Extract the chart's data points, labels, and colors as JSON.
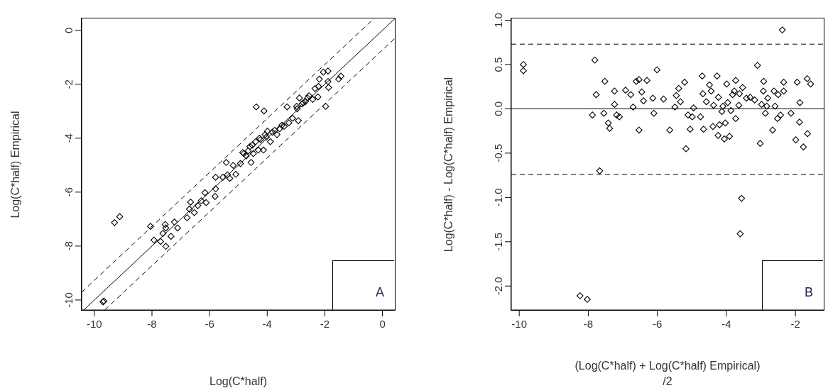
{
  "chart_data": [
    {
      "type": "scatter",
      "xlabel": "Log(C*half)",
      "ylabel": "Log(C*half) Empirical",
      "xlim": [
        -10.44,
        0.43
      ],
      "ylim": [
        -10.37,
        0.44
      ],
      "xticks": [
        -10,
        -8,
        -6,
        -4,
        -2,
        0
      ],
      "yticks": [
        -10,
        -8,
        -6,
        -4,
        -2,
        0
      ],
      "marker": "diamond",
      "annotations": [
        "A"
      ],
      "series": [
        {
          "type": "scatter",
          "color": "#000000",
          "x": [
            -9.67,
            -9.7,
            -9.3,
            -9.12,
            -8.05,
            -7.93,
            -7.7,
            -7.52,
            -7.62,
            -7.52,
            -7.54,
            -7.34,
            -7.22,
            -7.11,
            -6.78,
            -6.7,
            -6.66,
            -6.53,
            -6.41,
            -6.29,
            -6.16,
            -6.12,
            -5.81,
            -5.79,
            -5.79,
            -5.54,
            -5.42,
            -5.38,
            -5.3,
            -5.18,
            -5.09,
            -4.93,
            -4.85,
            -4.73,
            -4.56,
            -4.52,
            -4.48,
            -4.4,
            -4.38,
            -4.31,
            -4.23,
            -4.13,
            -4.11,
            -4.07,
            -3.99,
            -3.89,
            -3.82,
            -3.66,
            -3.57,
            -3.41,
            -3.31,
            -3.25,
            -3.12,
            -2.98,
            -2.92,
            -2.88,
            -2.79,
            -2.67,
            -2.55,
            -2.42,
            -2.24,
            -2.19,
            -2.22,
            -2.05,
            -1.97,
            -1.89,
            -1.89,
            -1.87,
            -1.52,
            -1.44,
            -4.81,
            -4.66,
            -4.6,
            -4.27,
            -4.03,
            -3.74,
            -3.49,
            -2.96,
            -2.75,
            -2.6,
            -2.34
          ],
          "values": [
            -10.04,
            -10.07,
            -7.13,
            -6.91,
            -7.27,
            -7.78,
            -7.83,
            -8.01,
            -7.53,
            -7.33,
            -7.2,
            -7.64,
            -7.11,
            -7.33,
            -6.95,
            -6.63,
            -6.37,
            -6.76,
            -6.5,
            -6.32,
            -6.02,
            -6.39,
            -6.16,
            -5.88,
            -5.45,
            -5.45,
            -4.9,
            -5.36,
            -5.49,
            -5.01,
            -5.34,
            -4.94,
            -4.53,
            -4.66,
            -4.9,
            -4.26,
            -4.57,
            -4.13,
            -2.84,
            -4.44,
            -4.05,
            -4.44,
            -2.99,
            -3.87,
            -3.74,
            -4.13,
            -3.78,
            -3.87,
            -3.65,
            -3.56,
            -2.84,
            -3.43,
            -3.26,
            -2.82,
            -3.35,
            -2.51,
            -2.73,
            -2.64,
            -2.43,
            -2.56,
            -2.47,
            -1.81,
            -2.08,
            -1.55,
            -2.82,
            -1.51,
            -1.9,
            -2.12,
            -1.81,
            -1.7,
            -4.57,
            -4.47,
            -4.31,
            -4,
            -3.96,
            -3.71,
            -3.52,
            -2.91,
            -2.69,
            -2.51,
            -2.16
          ]
        },
        {
          "type": "line",
          "marker": "none",
          "line_style": "solid",
          "color": "#000000",
          "x": [
            -10.37,
            0.43
          ],
          "values": [
            -10.37,
            0.43
          ]
        },
        {
          "type": "line",
          "marker": "none",
          "line_style": "dashed",
          "color": "#000000",
          "x": [
            -10.44,
            -0.29
          ],
          "values": [
            -9.71,
            0.44
          ]
        },
        {
          "type": "line",
          "marker": "none",
          "line_style": "dashed",
          "color": "#000000",
          "x": [
            -9.64,
            0.43
          ],
          "values": [
            -10.37,
            -0.3
          ]
        }
      ]
    },
    {
      "type": "scatter",
      "xlabel": "(Log(C*half) + Log(C*half) Empirical)\n/2",
      "ylabel": "Log(C*half) - Log(C*half) Empirical",
      "xlim": [
        -10.23,
        -1.18
      ],
      "ylim": [
        -2.27,
        1.02
      ],
      "xticks": [
        -10,
        -8,
        -6,
        -4,
        -2
      ],
      "yticks": [
        {
          "value": -2,
          "label": "-2.0"
        },
        {
          "value": -1.5,
          "label": "-1.5"
        },
        {
          "value": -1,
          "label": "-1.0"
        },
        {
          "value": -0.5,
          "label": "-0.5"
        },
        {
          "value": 0,
          "label": "0.0"
        },
        {
          "value": 0.5,
          "label": "0.5"
        },
        {
          "value": 1,
          "label": "1.0"
        }
      ],
      "marker": "diamond",
      "annotations": [
        "B"
      ],
      "ref_lines": [
        {
          "axis": "y",
          "value": 0,
          "line_style": "solid",
          "color": "#000000"
        },
        {
          "axis": "y",
          "value": 0.73,
          "line_style": "dashed",
          "color": "#000000"
        },
        {
          "axis": "y",
          "value": -0.74,
          "line_style": "dashed",
          "color": "#000000"
        }
      ],
      "series": [
        {
          "type": "scatter",
          "color": "#000000",
          "x": [
            -9.88,
            -9.88,
            -8.24,
            -8.03,
            -7.81,
            -7.77,
            -7.88,
            -7.67,
            -7.55,
            -7.52,
            -7.42,
            -7.38,
            -7.24,
            -7.24,
            -7.18,
            -7.1,
            -6.92,
            -6.77,
            -6.7,
            -6.61,
            -6.53,
            -6.53,
            -6.45,
            -6.4,
            -6.3,
            -6.13,
            -6.1,
            -6.01,
            -5.82,
            -5.64,
            -5.49,
            -5.45,
            -5.38,
            -5.33,
            -5.21,
            -5.17,
            -5.11,
            -5.05,
            -4.99,
            -4.95,
            -4.75,
            -4.7,
            -4.68,
            -4.66,
            -4.58,
            -4.49,
            -4.44,
            -4.39,
            -4.37,
            -4.27,
            -4.23,
            -4.24,
            -4.2,
            -4.13,
            -4.1,
            -4.06,
            -4.03,
            -3.99,
            -3.96,
            -3.91,
            -3.87,
            -3.82,
            -3.77,
            -3.73,
            -3.73,
            -3.64,
            -3.62,
            -3.56,
            -3.6,
            -3.53,
            -3.42,
            -3.31,
            -3.18,
            -3.1,
            -3.02,
            -2.98,
            -2.92,
            -2.93,
            -2.87,
            -2.83,
            -2.8,
            -2.66,
            -2.62,
            -2.59,
            -2.52,
            -2.5,
            -2.43,
            -2.38,
            -2.34,
            -2.34,
            -2.13,
            -1.95,
            -1.99,
            -1.88,
            -1.87,
            -1.77,
            -1.66,
            -1.65,
            -1.56
          ],
          "values": [
            0.5,
            0.43,
            -2.11,
            -2.15,
            0.55,
            0.16,
            -0.07,
            -0.7,
            -0.05,
            0.31,
            -0.16,
            -0.22,
            0.2,
            0.05,
            -0.07,
            -0.09,
            0.21,
            0.16,
            0.02,
            0.31,
            0.33,
            -0.24,
            0.19,
            0.09,
            0.32,
            0.12,
            -0.05,
            0.44,
            0.11,
            -0.24,
            0.02,
            0.15,
            0.23,
            0.08,
            0.3,
            -0.45,
            -0.07,
            -0.23,
            -0.09,
            0.01,
            -0.09,
            0.37,
            0.17,
            -0.23,
            0.08,
            0.27,
            0.2,
            -0.2,
            0.04,
            0.37,
            0.13,
            -0.3,
            -0.18,
            -0.03,
            0.03,
            -0.34,
            -0.16,
            0.28,
            0.07,
            -0.31,
            -0.02,
            0.16,
            0.2,
            0.32,
            -0.11,
            0.04,
            0.17,
            -1.01,
            -1.41,
            0.24,
            0.12,
            0.13,
            0.1,
            0.49,
            -0.39,
            0.05,
            0.31,
            0.2,
            -0.05,
            0.03,
            0.12,
            -0.24,
            0.2,
            0.03,
            -0.11,
            0.16,
            -0.07,
            0.89,
            0.2,
            0.3,
            -0.05,
            0.3,
            -0.35,
            -0.15,
            0.07,
            -0.43,
            0.34,
            -0.28,
            0.28
          ]
        }
      ]
    }
  ]
}
